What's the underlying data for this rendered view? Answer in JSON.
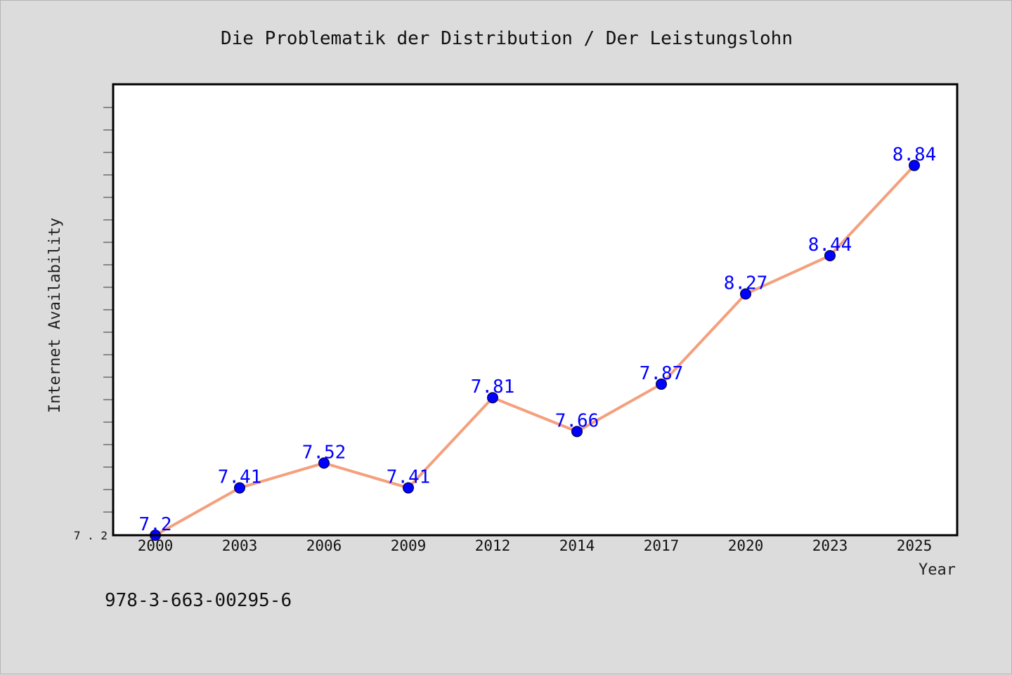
{
  "footnote": "978-3-663-00295-6",
  "chart_data": {
    "type": "line",
    "title": "Die Problematik der Distribution / Der Leistungslohn",
    "xlabel": "Year",
    "ylabel": "Internet Availability",
    "categories": [
      "2000",
      "2003",
      "2006",
      "2009",
      "2012",
      "2014",
      "2017",
      "2020",
      "2023",
      "2025"
    ],
    "series": [
      {
        "values": [
          7.2,
          7.41,
          7.52,
          7.41,
          7.81,
          7.66,
          7.87,
          8.27,
          8.44,
          8.84
        ],
        "labels": [
          "7.2",
          "7.41",
          "7.52",
          "7.41",
          "7.81",
          "7.66",
          "7.87",
          "8.27",
          "8.44",
          "8.84"
        ]
      }
    ],
    "ytick_labels": [
      "7.2"
    ],
    "ylim": [
      7.2,
      9.2
    ],
    "grid": false,
    "colors": {
      "line": "#f4a07d",
      "marker": "#0000ff",
      "data_label": "#0000ff",
      "plot_background": "#ffffff",
      "figure_background": "#dcdcdc"
    }
  }
}
